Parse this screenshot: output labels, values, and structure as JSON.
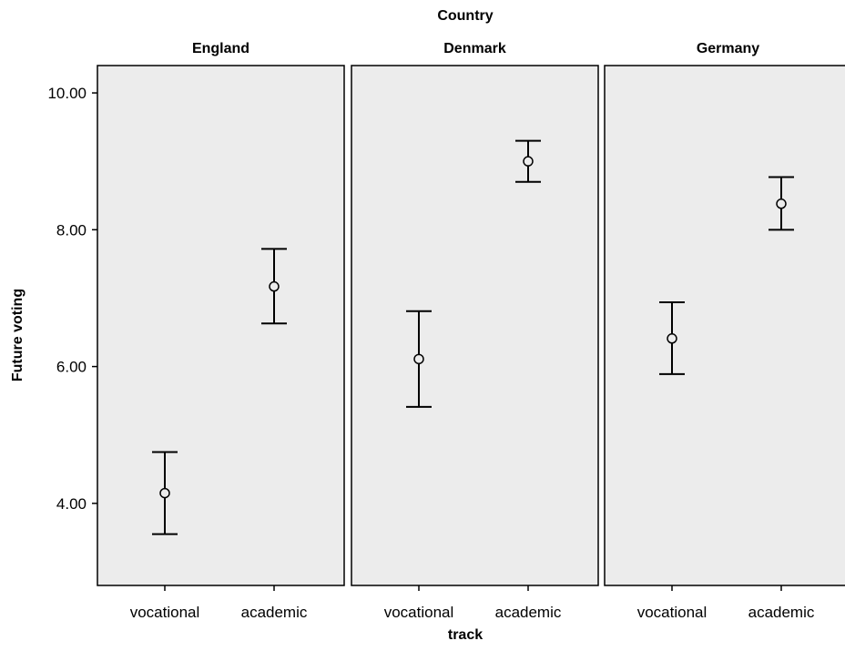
{
  "chart_data": {
    "type": "scatter",
    "title": "Country",
    "xlabel": "track",
    "ylabel": "Future voting",
    "ylim": [
      2.8,
      10.4
    ],
    "yticks": [
      "4.00",
      "6.00",
      "8.00",
      "10.00"
    ],
    "categories": [
      "vocational",
      "academic"
    ],
    "grid": false,
    "panels": [
      {
        "name": "England",
        "points": [
          {
            "category": "vocational",
            "mean": 4.15,
            "lower": 3.55,
            "upper": 4.75
          },
          {
            "category": "academic",
            "mean": 7.17,
            "lower": 6.63,
            "upper": 7.72
          }
        ]
      },
      {
        "name": "Denmark",
        "points": [
          {
            "category": "vocational",
            "mean": 6.11,
            "lower": 5.41,
            "upper": 6.81
          },
          {
            "category": "academic",
            "mean": 9.0,
            "lower": 8.7,
            "upper": 9.3
          }
        ]
      },
      {
        "name": "Germany",
        "points": [
          {
            "category": "vocational",
            "mean": 6.41,
            "lower": 5.89,
            "upper": 6.94
          },
          {
            "category": "academic",
            "mean": 8.38,
            "lower": 8.0,
            "upper": 8.77
          }
        ]
      }
    ]
  }
}
